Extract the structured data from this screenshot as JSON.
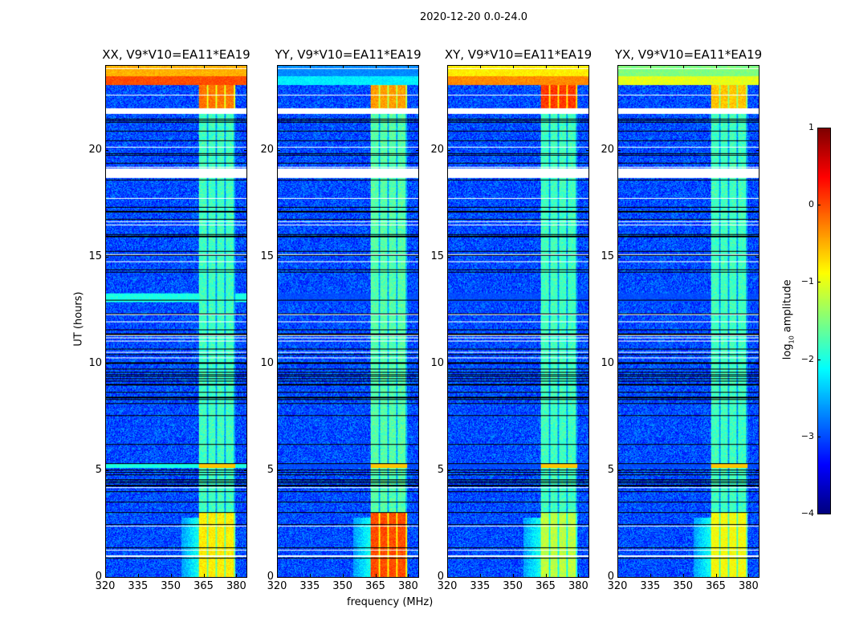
{
  "chart_data": {
    "type": "heatmap",
    "title": "2020-12-20 0.0-24.0",
    "xlabel": "frequency (MHz)",
    "ylabel": "UT (hours)",
    "xlim": [
      320,
      385
    ],
    "ylim": [
      0,
      24
    ],
    "xticks": [
      "320",
      "335",
      "350",
      "365",
      "380"
    ],
    "xtick_values": [
      320,
      335,
      350,
      365,
      380
    ],
    "yticks": [
      "0",
      "5",
      "10",
      "15",
      "20"
    ],
    "ytick_values": [
      0,
      5,
      10,
      15,
      20
    ],
    "colormap": "jet",
    "colorbar": {
      "label_main": "log",
      "label_sub": "10",
      "label_rest": " amplitude",
      "range": [
        -4,
        1
      ],
      "ticks": [
        "1",
        "0",
        "−1",
        "−2",
        "−3",
        "−4"
      ],
      "tick_values": [
        1,
        0,
        -1,
        -2,
        -3,
        -4
      ]
    },
    "band_mhz": [
      363,
      380
    ],
    "background_level": -3.0,
    "flagged_gaps_hours": [
      [
        18.75,
        19.2
      ],
      [
        21.75,
        22.0
      ]
    ],
    "series": [
      {
        "name": "XX, V9*V10=EA11*EA19",
        "band_level": -1.8,
        "low_band_level": -0.8,
        "top_band_level": -0.2,
        "top_full_level": 0.0,
        "tone_line_level": -2.0
      },
      {
        "name": "YY, V9*V10=EA11*EA19",
        "band_level": -1.7,
        "low_band_level": 0.0,
        "top_band_level": -0.4,
        "top_full_level": -2.2,
        "tone_line_level": -3.0
      },
      {
        "name": "XY, V9*V10=EA11*EA19",
        "band_level": -1.8,
        "low_band_level": -1.2,
        "top_band_level": 0.1,
        "top_full_level": -0.3,
        "tone_line_level": -3.0
      },
      {
        "name": "YX, V9*V10=EA11*EA19",
        "band_level": -1.8,
        "low_band_level": -0.9,
        "top_band_level": -0.6,
        "top_full_level": -1.0,
        "tone_line_level": -3.0
      }
    ]
  }
}
